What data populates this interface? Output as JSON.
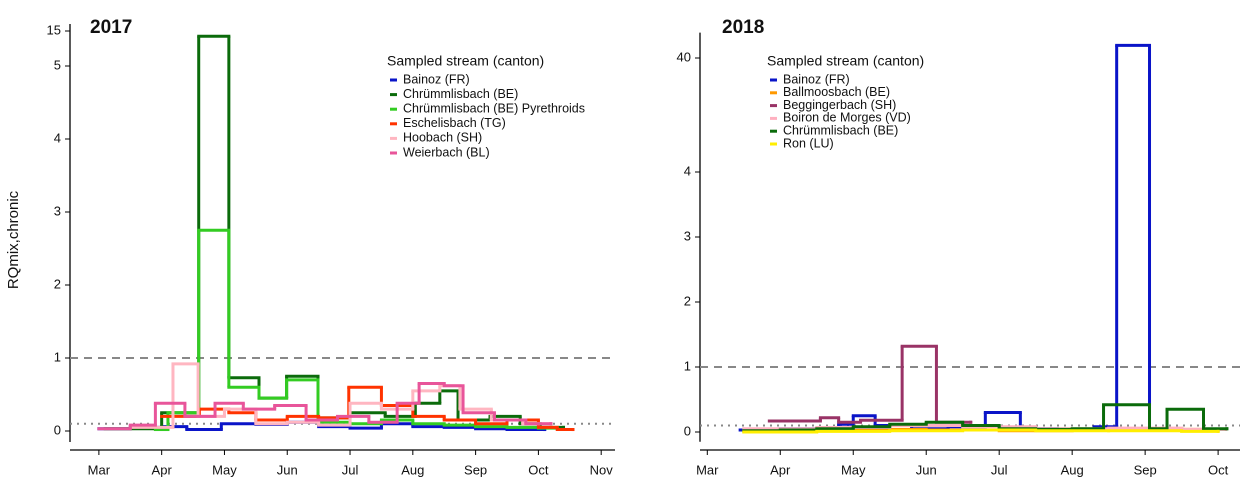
{
  "chart_data": [
    {
      "type": "line",
      "step": true,
      "title": "2017",
      "y_label": "RQmix,chronic",
      "legend_title": "Sampled stream (canton)",
      "xlim": [
        2.54,
        11.22
      ],
      "xticks": [
        {
          "value": 3,
          "label": "Mar"
        },
        {
          "value": 4,
          "label": "Apr"
        },
        {
          "value": 5,
          "label": "May"
        },
        {
          "value": 6,
          "label": "Jun"
        },
        {
          "value": 7,
          "label": "Jul"
        },
        {
          "value": 8,
          "label": "Aug"
        },
        {
          "value": 9,
          "label": "Sep"
        },
        {
          "value": 10,
          "label": "Oct"
        },
        {
          "value": 11,
          "label": "Nov"
        }
      ],
      "ylim": [
        -0.15,
        17
      ],
      "yticks": [
        0,
        1,
        2,
        3,
        4,
        5,
        15
      ],
      "hlines": [
        {
          "value": 1,
          "style": "dashed"
        },
        {
          "value": 0.1,
          "style": "dotted"
        }
      ],
      "series": [
        {
          "name": "Bainoz (FR)",
          "color": "#0a14c8",
          "x": [
            3.0,
            3.5,
            4.0,
            4.4,
            4.95,
            5.5,
            6.0,
            6.5,
            7.0,
            7.5,
            8.0,
            8.5,
            9.0,
            9.5,
            10.1
          ],
          "values": [
            0.03,
            0.05,
            0.06,
            0.02,
            0.1,
            0.09,
            0.12,
            0.06,
            0.04,
            0.1,
            0.06,
            0.05,
            0.03,
            0.02,
            0.02
          ]
        },
        {
          "name": "Chrümmlisbach (BE)",
          "color": "#0b6b0b",
          "x": [
            3.1,
            4.0,
            4.59,
            5.07,
            5.55,
            5.99,
            6.49,
            7.0,
            7.56,
            8.04,
            8.43,
            8.72,
            9.23,
            9.71,
            10.03,
            10.4
          ],
          "values": [
            0.03,
            0.25,
            13.5,
            0.73,
            0.45,
            0.75,
            0.18,
            0.25,
            0.2,
            0.38,
            0.55,
            0.15,
            0.2,
            0.1,
            0.05,
            0.05
          ]
        },
        {
          "name": "Chrümmlisbach (BE) Pyrethroids",
          "color": "#33cc22",
          "x": [
            3.9,
            4.1,
            4.59,
            5.07,
            5.55,
            5.99,
            6.49,
            7.0,
            7.5,
            8.0,
            8.5,
            9.0,
            9.5,
            10.0,
            10.3
          ],
          "values": [
            0.02,
            0.25,
            2.75,
            0.6,
            0.45,
            0.7,
            0.12,
            0.1,
            0.15,
            0.1,
            0.08,
            0.06,
            0.05,
            0.04,
            0.04
          ]
        },
        {
          "name": "Eschelisbach (TG)",
          "color": "#ff3300",
          "x": [
            4.0,
            4.6,
            5.07,
            5.5,
            6.0,
            6.5,
            6.98,
            7.5,
            8.0,
            8.5,
            9.0,
            9.5,
            10.0,
            10.3,
            10.55
          ],
          "values": [
            0.2,
            0.3,
            0.25,
            0.15,
            0.2,
            0.18,
            0.6,
            0.35,
            0.2,
            0.15,
            0.1,
            0.15,
            0.05,
            0.02,
            0.02
          ]
        },
        {
          "name": "Hoobach (SH)",
          "color": "#ffb6c1",
          "x": [
            3.5,
            4.18,
            4.58,
            5.0,
            5.5,
            6.0,
            6.5,
            7.0,
            7.5,
            8.0,
            8.43,
            8.75,
            9.25,
            9.75,
            10.2
          ],
          "values": [
            0.05,
            0.92,
            0.2,
            0.3,
            0.1,
            0.12,
            0.08,
            0.38,
            0.3,
            0.55,
            0.62,
            0.3,
            0.15,
            0.1,
            0.1
          ]
        },
        {
          "name": "Weierbach (BL)",
          "color": "#e8559a",
          "x": [
            3.0,
            3.5,
            3.9,
            4.37,
            4.85,
            5.3,
            5.8,
            6.3,
            6.8,
            7.3,
            7.75,
            8.1,
            8.5,
            8.8,
            9.3,
            9.8,
            10.2
          ],
          "values": [
            0.03,
            0.08,
            0.38,
            0.2,
            0.38,
            0.3,
            0.35,
            0.15,
            0.2,
            0.12,
            0.38,
            0.65,
            0.62,
            0.25,
            0.15,
            0.1,
            0.1
          ]
        }
      ]
    },
    {
      "type": "line",
      "step": true,
      "title": "2018",
      "legend_title": "Sampled stream (canton)",
      "xlim": [
        2.9,
        10.3
      ],
      "xticks": [
        {
          "value": 3,
          "label": "Mar"
        },
        {
          "value": 4,
          "label": "Apr"
        },
        {
          "value": 5,
          "label": "May"
        },
        {
          "value": 6,
          "label": "Jun"
        },
        {
          "value": 7,
          "label": "Jul"
        },
        {
          "value": 8,
          "label": "Aug"
        },
        {
          "value": 9,
          "label": "Sep"
        },
        {
          "value": 10,
          "label": "Oct"
        }
      ],
      "ylim": [
        -0.15,
        48
      ],
      "yticks": [
        0,
        1,
        2,
        3,
        4,
        40
      ],
      "hlines": [
        {
          "value": 1,
          "style": "dashed"
        },
        {
          "value": 0.1,
          "style": "dotted"
        }
      ],
      "series": [
        {
          "name": "Bainoz (FR)",
          "color": "#0a14c8",
          "x": [
            3.45,
            4.0,
            4.8,
            5.0,
            5.3,
            5.8,
            6.3,
            6.81,
            7.29,
            7.8,
            8.3,
            8.61,
            9.06,
            9.5,
            9.9
          ],
          "values": [
            0.03,
            0.05,
            0.12,
            0.25,
            0.1,
            0.05,
            0.08,
            0.3,
            0.05,
            0.03,
            0.08,
            44,
            0.05,
            0.03,
            0.03
          ]
        },
        {
          "name": "Ballmoosbach (BE)",
          "color": "#ff9900",
          "x": [
            3.6,
            4.2,
            5.0,
            6.0,
            7.0,
            8.0,
            9.0,
            9.8,
            10.0
          ],
          "values": [
            0.02,
            0.03,
            0.04,
            0.03,
            0.02,
            0.03,
            0.04,
            0.02,
            0.02
          ]
        },
        {
          "name": "Beggingerbach (SH)",
          "color": "#993366",
          "x": [
            3.85,
            4.55,
            4.8,
            5.1,
            5.67,
            6.14,
            6.61
          ],
          "values": [
            0.17,
            0.22,
            0.15,
            0.18,
            1.32,
            0.15,
            0.15
          ]
        },
        {
          "name": "Boiron de Morges (VD)",
          "color": "#ffb0c0",
          "x": [
            3.5,
            4.5,
            5.5,
            6.5,
            7.5,
            8.5,
            9.5,
            10.1
          ],
          "values": [
            0.05,
            0.07,
            0.1,
            0.08,
            0.05,
            0.06,
            0.04,
            0.04
          ]
        },
        {
          "name": "Chrümmlisbach (BE)",
          "color": "#0b6b0b",
          "x": [
            3.5,
            4.0,
            4.5,
            5.0,
            5.5,
            6.0,
            6.5,
            7.0,
            7.5,
            8.0,
            8.43,
            9.06,
            9.3,
            9.8,
            10.12
          ],
          "values": [
            0.02,
            0.03,
            0.05,
            0.08,
            0.12,
            0.15,
            0.1,
            0.05,
            0.04,
            0.05,
            0.42,
            0.05,
            0.35,
            0.05,
            0.05
          ]
        },
        {
          "name": "Ron (LU)",
          "color": "#ffee00",
          "x": [
            3.5,
            4.5,
            5.5,
            6.5,
            7.5,
            8.5,
            9.5,
            10.0
          ],
          "values": [
            0.0,
            0.01,
            0.02,
            0.03,
            0.02,
            0.02,
            0.01,
            0.01
          ]
        }
      ]
    }
  ]
}
